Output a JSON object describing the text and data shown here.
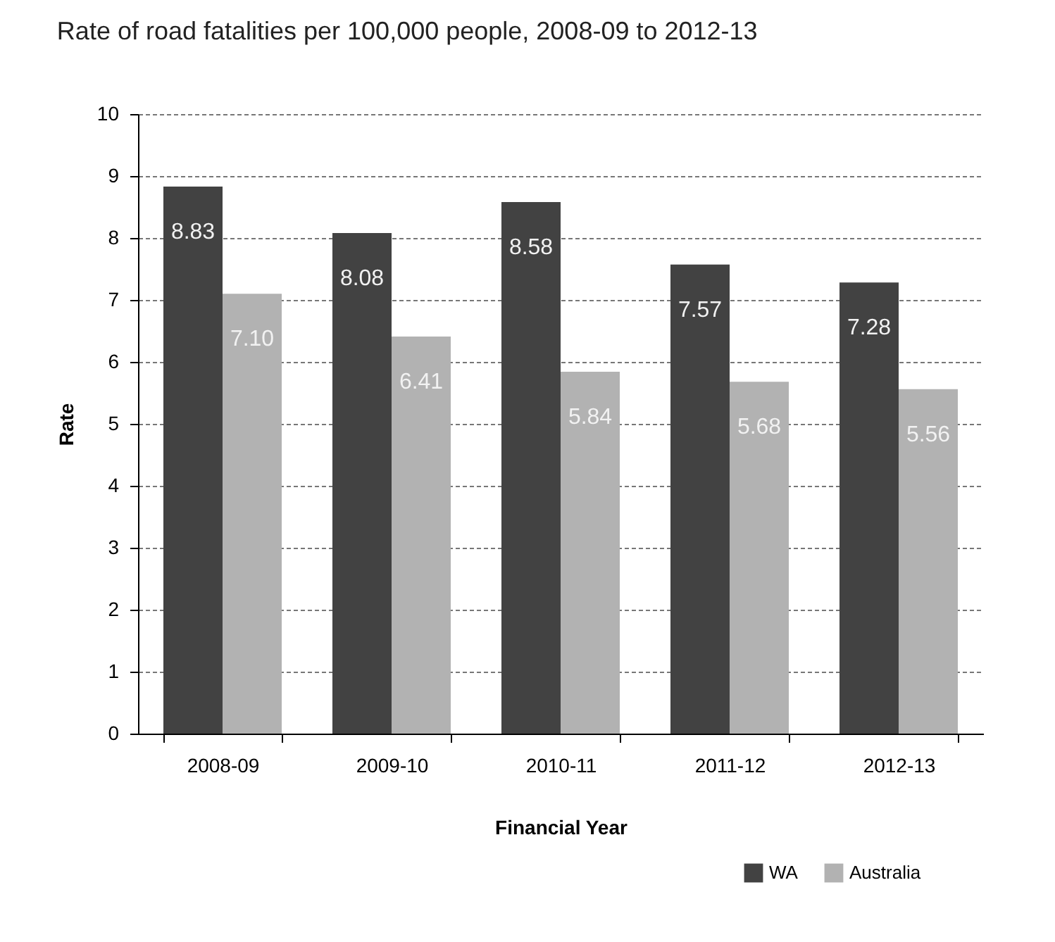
{
  "chart_data": {
    "type": "bar",
    "title": "Rate of road fatalities per 100,000 people, 2008-09 to 2012-13",
    "xlabel": "Financial Year",
    "ylabel": "Rate",
    "categories": [
      "2008-09",
      "2009-10",
      "2010-11",
      "2011-12",
      "2012-13"
    ],
    "series": [
      {
        "name": "WA",
        "color": "#424242",
        "values": [
          8.83,
          8.08,
          8.58,
          7.57,
          7.28
        ],
        "value_labels": [
          "8.83",
          "8.08",
          "8.58",
          "7.57",
          "7.28"
        ]
      },
      {
        "name": "Australia",
        "color": "#b2b2b2",
        "values": [
          7.1,
          6.41,
          5.84,
          5.68,
          5.56
        ],
        "value_labels": [
          "7.10",
          "6.41",
          "5.84",
          "5.68",
          "5.56"
        ]
      }
    ],
    "ylim": [
      0,
      10
    ],
    "yticks": [
      0,
      1,
      2,
      3,
      4,
      5,
      6,
      7,
      8,
      9,
      10
    ],
    "grid": "y",
    "legend": "bottom right"
  }
}
